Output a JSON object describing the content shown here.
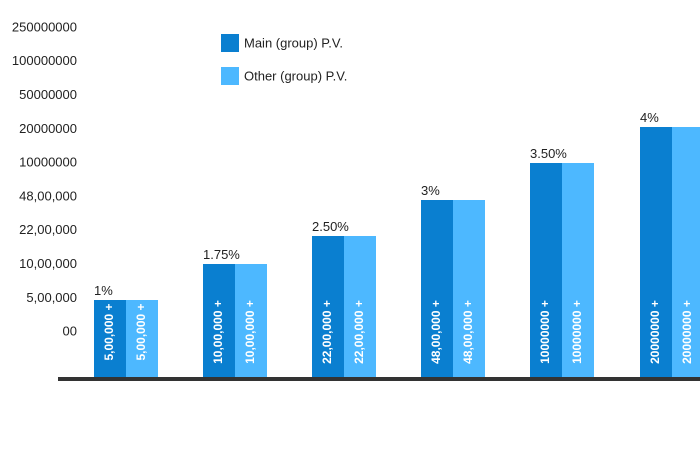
{
  "chart_data": {
    "type": "bar",
    "y_tick_labels": [
      "250000000",
      "100000000",
      "50000000",
      "20000000",
      "10000000",
      "48,00,000",
      "22,00,000",
      "10,00,000",
      "5,00,000",
      "00"
    ],
    "categories": [
      "1%",
      "1.75%",
      "2.50%",
      "3%",
      "3.50%",
      "4%"
    ],
    "series": [
      {
        "name": "Main (group) P.V.",
        "color": "#0a7fd0",
        "bar_labels": [
          "5,00,000 +",
          "10,00,000 +",
          "22,00,000 +",
          "48,00,000 +",
          "10000000 +",
          "20000000 +"
        ],
        "values": [
          500000,
          1000000,
          2200000,
          4800000,
          10000000,
          20000000
        ]
      },
      {
        "name": "Other (group) P.V.",
        "color": "#4db8ff",
        "bar_labels": [
          "5,00,000 +",
          "10,00,000 +",
          "22,00,000 +",
          "48,00,000 +",
          "10000000 +",
          "20000000 +"
        ],
        "values": [
          500000,
          1000000,
          2200000,
          4800000,
          10000000,
          20000000
        ]
      }
    ],
    "axis_color": "#333333",
    "legend_position": "top-left",
    "grid": false
  }
}
